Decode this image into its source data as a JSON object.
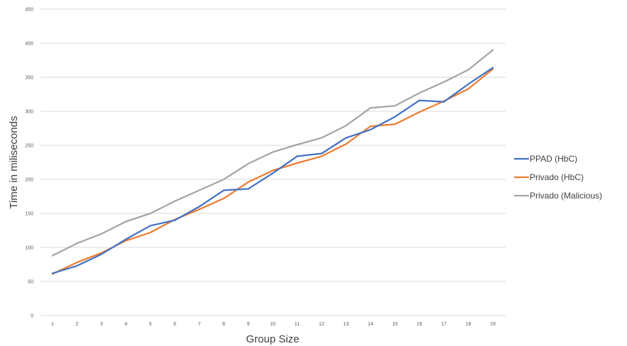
{
  "chart_data": {
    "type": "line",
    "title": "",
    "xlabel": "Group Size",
    "ylabel": "Time in miliseconds",
    "x": [
      1,
      2,
      3,
      4,
      5,
      6,
      7,
      8,
      9,
      10,
      11,
      12,
      13,
      14,
      15,
      16,
      17,
      18,
      19
    ],
    "ylim": [
      0,
      450
    ],
    "yticks": [
      0,
      50,
      100,
      150,
      200,
      250,
      300,
      350,
      400,
      450
    ],
    "grid": "horizontal",
    "legend_position": "right",
    "series": [
      {
        "name": "PPAD (HbC)",
        "color": "#4472C4",
        "values": [
          62,
          73,
          90,
          112,
          132,
          140,
          160,
          184,
          186,
          209,
          234,
          238,
          261,
          273,
          292,
          316,
          314,
          340,
          364
        ]
      },
      {
        "name": "Privado (HbC)",
        "color": "#ED7D31",
        "values": [
          61,
          78,
          92,
          110,
          122,
          141,
          156,
          172,
          196,
          213,
          224,
          234,
          252,
          278,
          281,
          299,
          315,
          333,
          362
        ]
      },
      {
        "name": "Privado (Malicious)",
        "color": "#A5A5A5",
        "values": [
          88,
          106,
          120,
          138,
          150,
          168,
          184,
          200,
          223,
          240,
          251,
          261,
          279,
          305,
          308,
          327,
          343,
          361,
          390
        ]
      }
    ]
  }
}
